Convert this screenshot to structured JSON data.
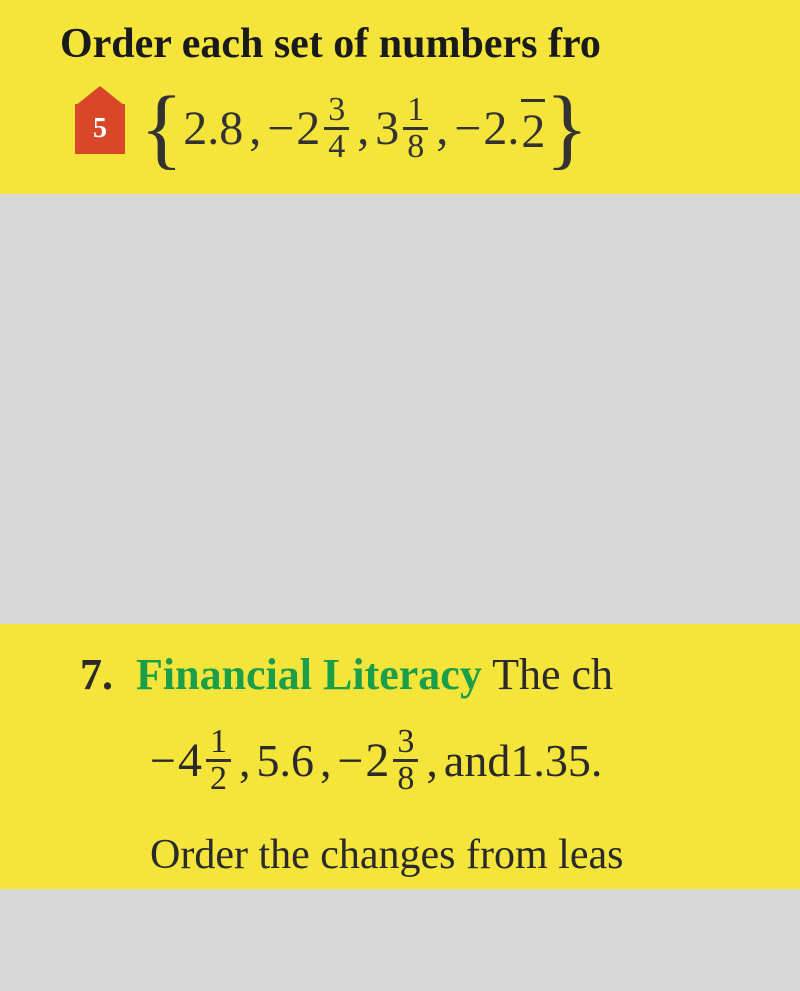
{
  "highlight_color": "#f5e53a",
  "background_color": "#d8d8d8",
  "problem5": {
    "instruction": "Order each set of numbers fro",
    "icon_number": "5",
    "icon_color": "#d9472a",
    "set": {
      "open": "{",
      "close": "}",
      "item1": "2.8",
      "item2_neg": "−",
      "item2_whole": "2",
      "item2_num": "3",
      "item2_den": "4",
      "item3_whole": "3",
      "item3_num": "1",
      "item3_den": "8",
      "item4_neg": "−",
      "item4_whole": "2.",
      "item4_bar": "2",
      "comma": ","
    }
  },
  "problem7": {
    "number": "7.",
    "category": "Financial Literacy",
    "category_color": "#1a9e4a",
    "line1_tail": "  The ch",
    "line2": {
      "n1_neg": "−",
      "n1_whole": "4",
      "n1_num": "1",
      "n1_den": "2",
      "comma1": ",",
      "n2": "5.6",
      "comma2": ",",
      "n3_neg": "−",
      "n3_whole": "2",
      "n3_num": "3",
      "n3_den": "8",
      "comma3": ",",
      "and": " and ",
      "n4": "1.35.",
      "space": " "
    },
    "line3": "Order the changes from leas"
  }
}
